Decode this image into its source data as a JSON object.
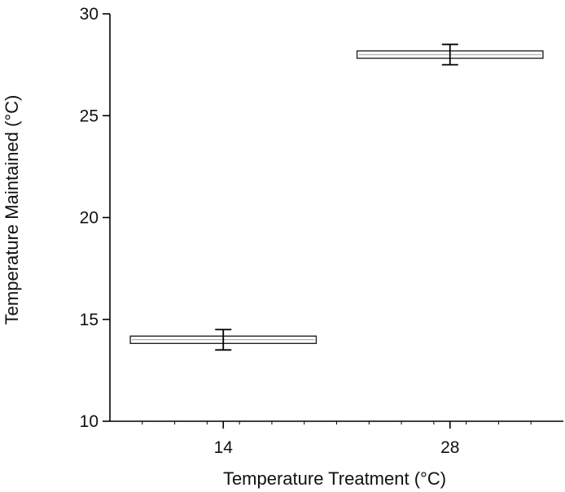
{
  "chart_data": {
    "type": "bar",
    "title": "",
    "xlabel": "Temperature Treatment (°C)",
    "ylabel": "Temperature Maintained (°C)",
    "categories": [
      "14",
      "28"
    ],
    "series": [
      {
        "values": [
          14.0,
          28.0
        ],
        "error": [
          0.5,
          0.5
        ]
      }
    ],
    "ylim": [
      10,
      30
    ],
    "yticks": [
      10,
      15,
      20,
      25,
      30
    ],
    "grid": false,
    "legend": "none",
    "colors": {
      "axis": "#000000",
      "bar_fill": "#ffffff",
      "bar_stroke": "#222222"
    }
  }
}
